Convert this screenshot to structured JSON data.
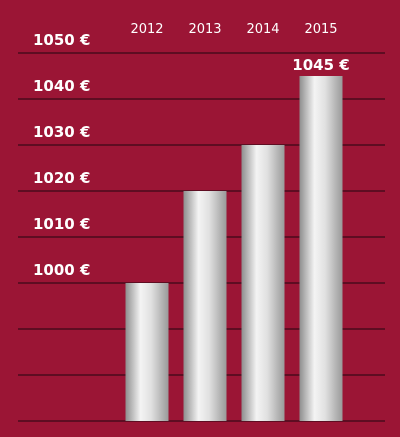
{
  "chart_data": {
    "type": "bar",
    "categories": [
      "2012",
      "2013",
      "2014",
      "2015"
    ],
    "values": [
      1000,
      1020,
      1030,
      1045
    ],
    "value_labels": [
      null,
      null,
      null,
      "1045 €"
    ],
    "ylim": [
      970,
      1050
    ],
    "yticks": [
      {
        "value": 1000,
        "label": "1000 €"
      },
      {
        "value": 1010,
        "label": "1010 €"
      },
      {
        "value": 1020,
        "label": "1020 €"
      },
      {
        "value": 1030,
        "label": "1030 €"
      },
      {
        "value": 1040,
        "label": "1040 €"
      },
      {
        "value": 1050,
        "label": "1050 €"
      }
    ],
    "grid": true,
    "color": "#c8c8c8"
  }
}
